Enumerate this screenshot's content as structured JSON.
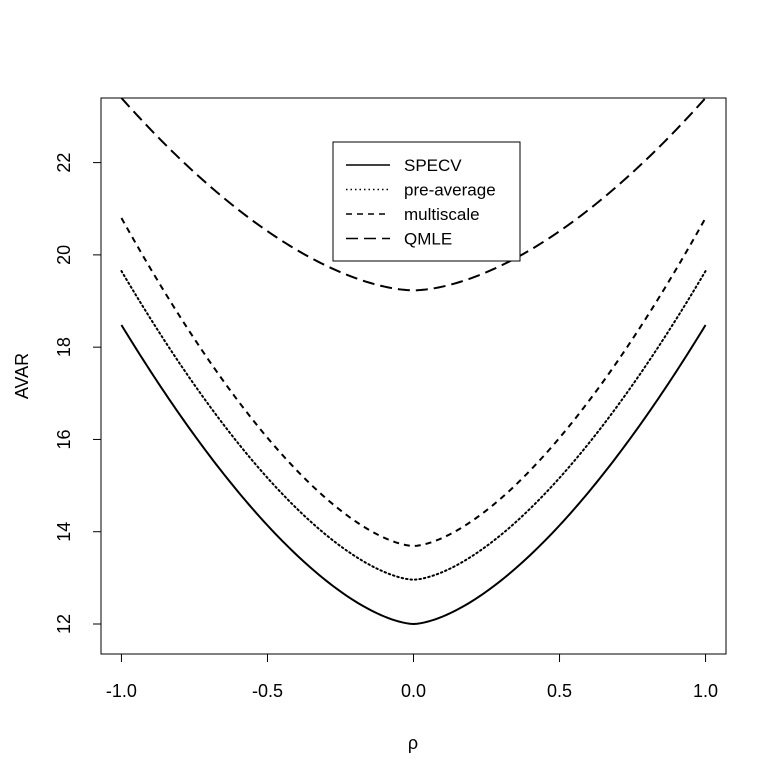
{
  "chart_data": {
    "type": "line",
    "title": "",
    "xlabel": "ρ",
    "ylabel": "AVAR",
    "xlim": [
      -1.07,
      1.07
    ],
    "ylim": [
      11.35,
      23.4
    ],
    "x_ticks": [
      -1.0,
      -0.5,
      0.0,
      0.5,
      1.0
    ],
    "x_tick_labels": [
      "-1.0",
      "-0.5",
      "0.0",
      "0.5",
      "1.0"
    ],
    "y_ticks": [
      12,
      14,
      16,
      18,
      20,
      22
    ],
    "y_tick_labels": [
      "12",
      "14",
      "16",
      "18",
      "20",
      "22"
    ],
    "grid": false,
    "legend_position": "top-center",
    "series": [
      {
        "name": "SPECV",
        "line_style": "solid",
        "color": "#000000",
        "vertex": 12.0,
        "endpoint": 18.48,
        "shape_exponent": 1.6
      },
      {
        "name": "pre-average",
        "line_style": "dotted",
        "color": "#000000",
        "vertex": 12.96,
        "endpoint": 19.65,
        "shape_exponent": 1.6
      },
      {
        "name": "multiscale",
        "line_style": "dashed",
        "color": "#000000",
        "vertex": 13.69,
        "endpoint": 20.8,
        "shape_exponent": 1.6
      },
      {
        "name": "QMLE",
        "line_style": "longdash",
        "color": "#000000",
        "vertex": 19.23,
        "endpoint": 23.4,
        "shape_exponent": 1.7
      }
    ]
  }
}
